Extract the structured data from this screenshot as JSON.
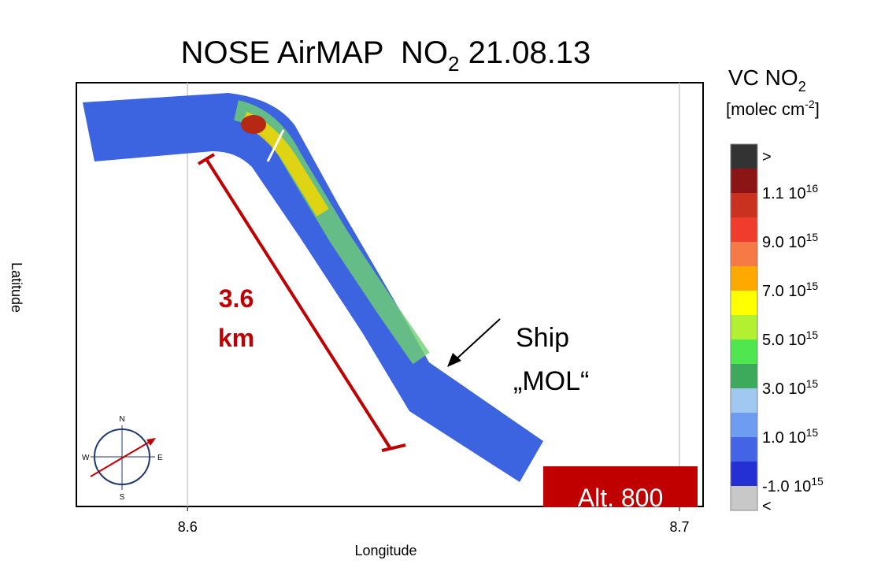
{
  "title": {
    "text": "NOSE AirMAP  NO",
    "sub": "2",
    "tail": " 21.08.13"
  },
  "x_axis": {
    "label": "Longitude",
    "xlim": [
      8.5774,
      8.7048
    ],
    "xticks": [
      8.6,
      8.7
    ],
    "grid": true
  },
  "y_axis": {
    "label": "Latitude"
  },
  "colorbar": {
    "title": "VC NO",
    "title_sub": "2",
    "units": "[molec cm",
    "units_sup": "-2",
    "units_tail": "]",
    "colors": [
      "#333333",
      "#8b1414",
      "#c8321e",
      "#f03c2c",
      "#f57a46",
      "#ffa800",
      "#ffff00",
      "#b4f032",
      "#50e650",
      "#3caa5a",
      "#a0c8f0",
      "#6e9cf0",
      "#4464e6",
      "#2430d4",
      "#c8c8c8"
    ],
    "labels": [
      {
        "text": ">"
      },
      {
        "text": "1.1 10",
        "exp": "16"
      },
      {
        "text": "9.0 10",
        "exp": "15"
      },
      {
        "text": "7.0 10",
        "exp": "15"
      },
      {
        "text": "5.0 10",
        "exp": "15"
      },
      {
        "text": "3.0 10",
        "exp": "15"
      },
      {
        "text": "1.0 10",
        "exp": "15"
      },
      {
        "text": "-1.0 10",
        "exp": "15"
      },
      {
        "text": "<"
      }
    ]
  },
  "annotations": {
    "distance": [
      "3.6",
      "km"
    ],
    "ship": [
      "Ship",
      "„MOL“"
    ],
    "altitude": "Alt. 800"
  },
  "compass": {
    "n": "N",
    "e": "E",
    "s": "S",
    "w": "W"
  }
}
